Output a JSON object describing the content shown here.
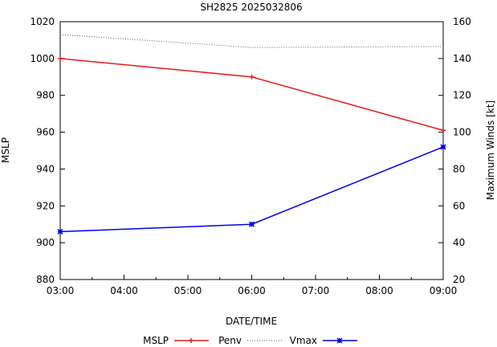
{
  "chart_data": {
    "type": "line",
    "title": "SH2825 2025032806",
    "xlabel": "DATE/TIME",
    "ylabel": "MSLP",
    "y2label": "Maximum Winds [kt]",
    "x_ticks": [
      "03:00",
      "04:00",
      "05:00",
      "06:00",
      "07:00",
      "08:00",
      "09:00"
    ],
    "x_hours": [
      0,
      1,
      2,
      3,
      4,
      5,
      6
    ],
    "xlim": [
      0,
      6
    ],
    "ylim": [
      880,
      1020
    ],
    "y_ticks": [
      880,
      900,
      920,
      940,
      960,
      980,
      1000,
      1020
    ],
    "y2lim": [
      20,
      160
    ],
    "y2_ticks": [
      20,
      40,
      60,
      80,
      100,
      120,
      140,
      160
    ],
    "grid": false,
    "legend_position": "bottom",
    "series": [
      {
        "name": "MSLP",
        "axis": "y",
        "color": "#e41a1c",
        "style": "line-plus",
        "x": [
          0,
          3,
          6
        ],
        "values": [
          1000,
          990,
          961
        ]
      },
      {
        "name": "Penv",
        "axis": "y",
        "color": "#555555",
        "style": "dotted",
        "x": [
          0,
          3,
          6
        ],
        "values": [
          1013,
          1006,
          1006.5
        ]
      },
      {
        "name": "Vmax",
        "axis": "y2",
        "color": "#0000ee",
        "style": "line-star",
        "x": [
          0,
          3,
          6
        ],
        "values": [
          46,
          50,
          92
        ]
      }
    ]
  }
}
